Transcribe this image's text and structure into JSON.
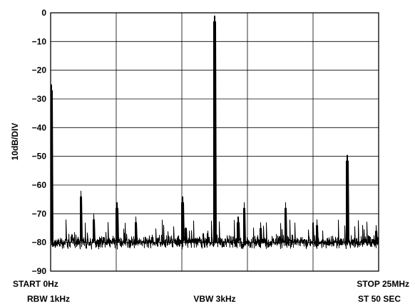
{
  "chart_data": {
    "type": "line",
    "ylabel": "10dB/DIV",
    "ylim": [
      -90,
      0
    ],
    "xlim": [
      0,
      25
    ],
    "x_unit": "MHz",
    "y_ticks": [
      "0",
      "−10",
      "−20",
      "−30",
      "−40",
      "−50",
      "−60",
      "−70",
      "−80",
      "−90"
    ],
    "y_tick_values": [
      0,
      -10,
      -20,
      -30,
      -40,
      -50,
      -60,
      -70,
      -80,
      -90
    ],
    "x_divisions": 5,
    "grid": true,
    "start_label": "START 0Hz",
    "stop_label": "STOP 25MHz",
    "rbw_label": "RBW 1kHz",
    "vbw_label": "VBW 3kHz",
    "sweep_label": "ST 50 SEC",
    "noise_floor_db": -80,
    "spurs": [
      {
        "x": 0.05,
        "y": -25
      },
      {
        "x": 2.3,
        "y": -62
      },
      {
        "x": 3.3,
        "y": -70
      },
      {
        "x": 5.05,
        "y": -66
      },
      {
        "x": 6.5,
        "y": -71
      },
      {
        "x": 10.05,
        "y": -64
      },
      {
        "x": 12.5,
        "y": -1
      },
      {
        "x": 14.3,
        "y": -71
      },
      {
        "x": 14.75,
        "y": -66
      },
      {
        "x": 16.0,
        "y": -73
      },
      {
        "x": 17.9,
        "y": -66
      },
      {
        "x": 20.3,
        "y": -72
      },
      {
        "x": 22.6,
        "y": -49.5
      },
      {
        "x": 24.8,
        "y": -74
      }
    ]
  }
}
